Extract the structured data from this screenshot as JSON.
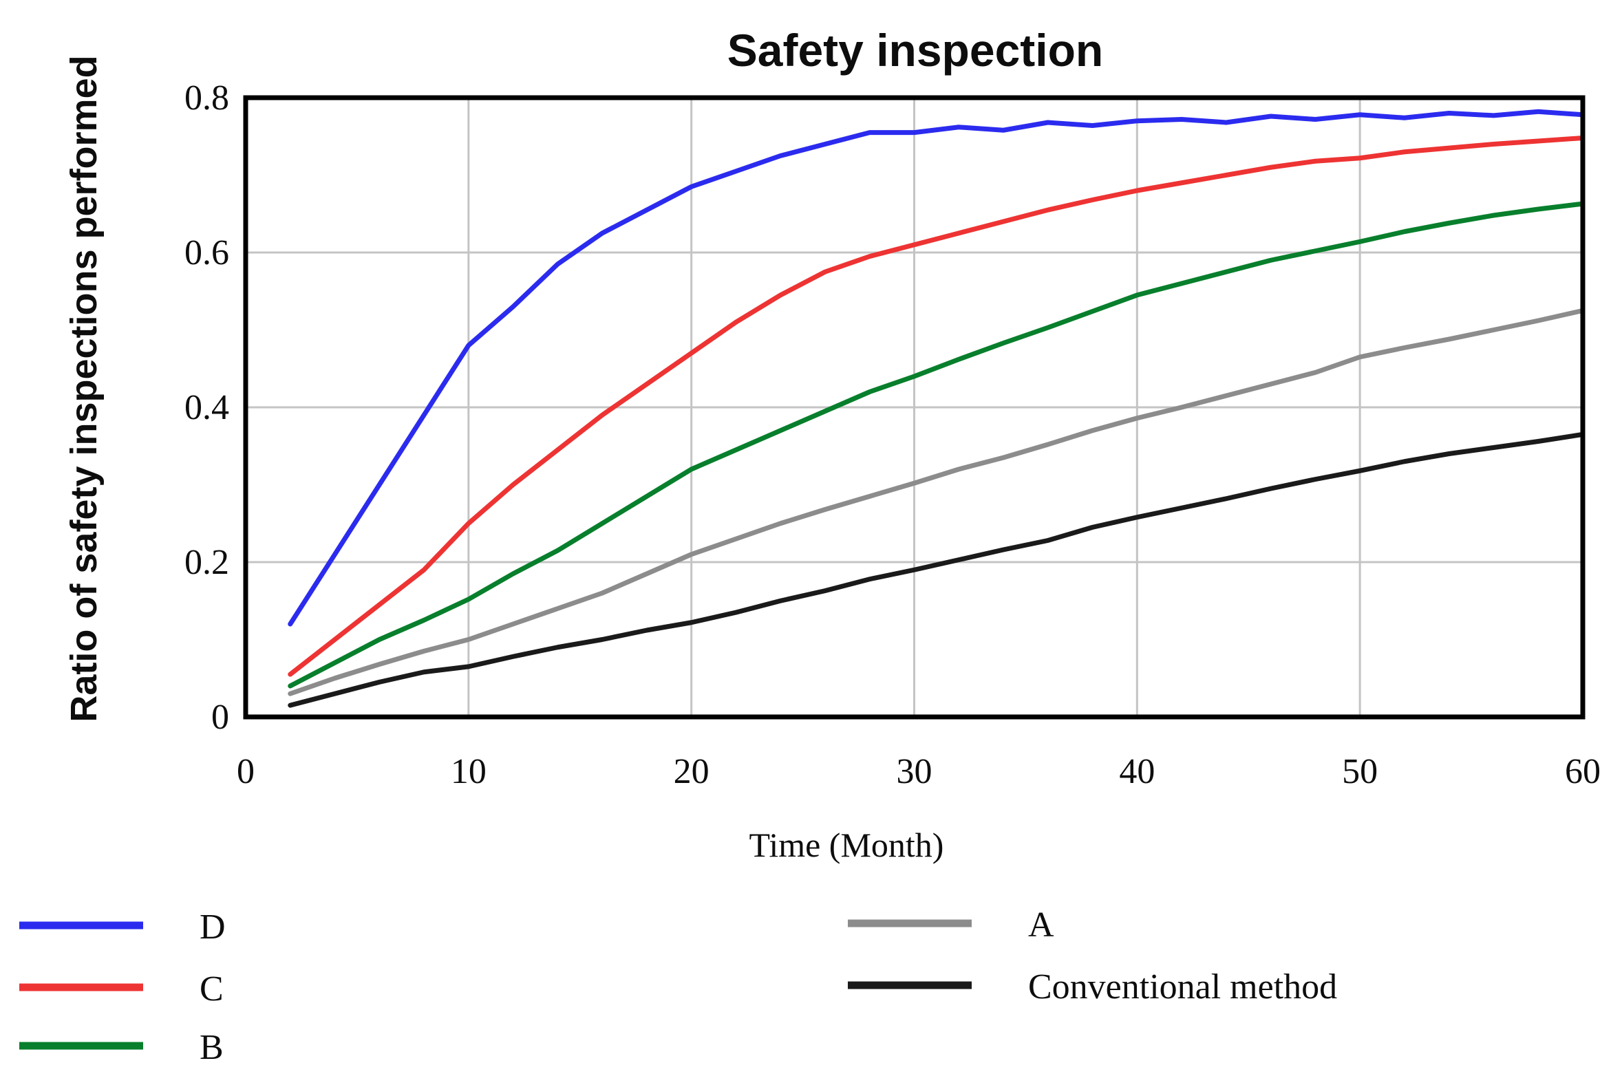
{
  "chart_data": {
    "type": "line",
    "title": "Safety inspection",
    "xlabel": "Time (Month)",
    "ylabel": "Ratio of safety inspections performed",
    "xlim": [
      0,
      60
    ],
    "ylim": [
      0,
      0.8
    ],
    "x_ticks": [
      0,
      10,
      20,
      30,
      40,
      50,
      60
    ],
    "x_tick_labels": [
      "0",
      "10",
      "20",
      "30",
      "40",
      "50",
      "60"
    ],
    "y_ticks": [
      0,
      0.2,
      0.4,
      0.6,
      0.8
    ],
    "y_tick_labels": [
      "0",
      "0.2",
      "0.4",
      "0.6",
      "0.8"
    ],
    "grid": true,
    "grid_color": "#c4c4c4",
    "frame_color": "#000000",
    "background_color": "#ffffff",
    "x": [
      2,
      4,
      6,
      8,
      10,
      12,
      14,
      16,
      18,
      20,
      22,
      24,
      26,
      28,
      30,
      32,
      34,
      36,
      38,
      40,
      42,
      44,
      46,
      48,
      50,
      52,
      54,
      56,
      58,
      60
    ],
    "series": [
      {
        "name": "D",
        "color": "#2b2bef",
        "values": [
          0.12,
          0.21,
          0.3,
          0.39,
          0.48,
          0.53,
          0.585,
          0.625,
          0.655,
          0.685,
          0.705,
          0.725,
          0.74,
          0.755,
          0.755,
          0.762,
          0.758,
          0.768,
          0.764,
          0.77,
          0.772,
          0.768,
          0.776,
          0.772,
          0.778,
          0.774,
          0.78,
          0.777,
          0.782,
          0.778
        ]
      },
      {
        "name": "C",
        "color": "#ee3333",
        "values": [
          0.055,
          0.1,
          0.145,
          0.19,
          0.25,
          0.3,
          0.345,
          0.39,
          0.43,
          0.47,
          0.51,
          0.545,
          0.575,
          0.595,
          0.61,
          0.625,
          0.64,
          0.655,
          0.668,
          0.68,
          0.69,
          0.7,
          0.71,
          0.718,
          0.722,
          0.73,
          0.735,
          0.74,
          0.744,
          0.748
        ]
      },
      {
        "name": "B",
        "color": "#087f2c",
        "values": [
          0.04,
          0.07,
          0.1,
          0.125,
          0.152,
          0.185,
          0.215,
          0.25,
          0.285,
          0.32,
          0.345,
          0.37,
          0.395,
          0.42,
          0.44,
          0.462,
          0.483,
          0.503,
          0.524,
          0.545,
          0.56,
          0.575,
          0.59,
          0.602,
          0.614,
          0.627,
          0.638,
          0.648,
          0.656,
          0.663
        ]
      },
      {
        "name": "A",
        "color": "#8c8c8c",
        "values": [
          0.03,
          0.05,
          0.068,
          0.085,
          0.1,
          0.12,
          0.14,
          0.16,
          0.185,
          0.21,
          0.23,
          0.25,
          0.268,
          0.285,
          0.302,
          0.32,
          0.335,
          0.352,
          0.37,
          0.386,
          0.4,
          0.415,
          0.43,
          0.445,
          0.465,
          0.477,
          0.488,
          0.5,
          0.512,
          0.525
        ]
      },
      {
        "name": "Conventional method",
        "color": "#1a1a1a",
        "values": [
          0.015,
          0.03,
          0.045,
          0.058,
          0.065,
          0.078,
          0.09,
          0.1,
          0.112,
          0.122,
          0.135,
          0.15,
          0.163,
          0.178,
          0.19,
          0.203,
          0.216,
          0.228,
          0.245,
          0.258,
          0.27,
          0.282,
          0.295,
          0.307,
          0.318,
          0.33,
          0.34,
          0.348,
          0.356,
          0.365
        ]
      }
    ],
    "legend_position": "bottom",
    "legend_columns": [
      [
        "D",
        "C",
        "B"
      ],
      [
        "A",
        "Conventional method"
      ]
    ]
  }
}
